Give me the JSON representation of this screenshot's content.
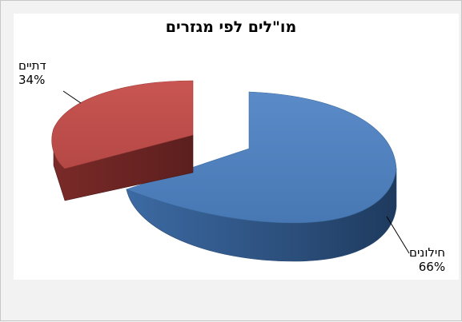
{
  "chart_data": {
    "type": "pie",
    "title": "מו\"לים לפי מגזרים",
    "slices": [
      {
        "name": "חילונים",
        "value": 66,
        "label": "66%",
        "color": "#4f81bd"
      },
      {
        "name": "דתיים",
        "value": 34,
        "label": "34%",
        "color": "#c0504d"
      }
    ],
    "style": "3d-exploded",
    "legend": "none"
  }
}
